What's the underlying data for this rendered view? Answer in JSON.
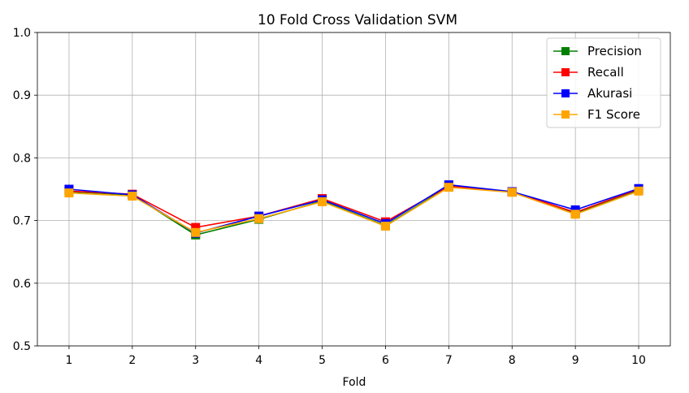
{
  "chart_data": {
    "type": "line",
    "title": "10 Fold Cross Validation SVM",
    "xlabel": "Fold",
    "ylabel": "",
    "x": [
      1,
      2,
      3,
      4,
      5,
      6,
      7,
      8,
      9,
      10
    ],
    "xtick_labels": [
      "1",
      "2",
      "3",
      "4",
      "5",
      "6",
      "7",
      "8",
      "9",
      "10"
    ],
    "ylim": [
      0.5,
      1.0
    ],
    "yticks": [
      0.5,
      0.6,
      0.7,
      0.8,
      0.9,
      1.0
    ],
    "ytick_labels": [
      "0.5",
      "0.6",
      "0.7",
      "0.8",
      "0.9",
      "1.0"
    ],
    "grid": true,
    "legend_position": "top-right",
    "marker": "square",
    "series": [
      {
        "name": "Precision",
        "color": "#008000",
        "values": [
          0.746,
          0.741,
          0.677,
          0.702,
          0.731,
          0.692,
          0.754,
          0.746,
          0.712,
          0.748
        ]
      },
      {
        "name": "Recall",
        "color": "#ff0000",
        "values": [
          0.747,
          0.742,
          0.689,
          0.707,
          0.735,
          0.698,
          0.755,
          0.746,
          0.713,
          0.75
        ]
      },
      {
        "name": "Akurasi",
        "color": "#0000ff",
        "values": [
          0.75,
          0.741,
          0.68,
          0.707,
          0.733,
          0.695,
          0.757,
          0.746,
          0.717,
          0.751
        ]
      },
      {
        "name": "F1 Score",
        "color": "#ffa500",
        "values": [
          0.744,
          0.739,
          0.681,
          0.703,
          0.73,
          0.691,
          0.753,
          0.745,
          0.71,
          0.747
        ]
      }
    ]
  }
}
